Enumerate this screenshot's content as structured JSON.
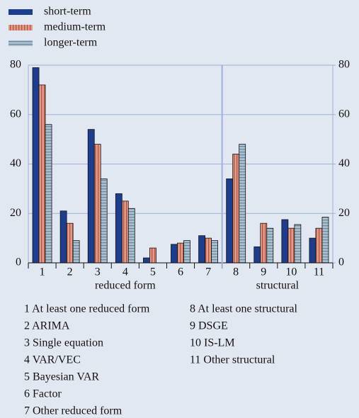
{
  "chart_data": {
    "type": "bar",
    "categories": [
      "1",
      "2",
      "3",
      "4",
      "5",
      "6",
      "7",
      "8",
      "9",
      "10",
      "11"
    ],
    "series": [
      {
        "name": "short-term",
        "color": "#1d3e8e",
        "values": [
          79,
          21,
          54,
          28,
          2,
          7.5,
          11,
          34,
          6.5,
          17.5,
          10
        ]
      },
      {
        "name": "medium-term",
        "color": "#e39a86",
        "values": [
          72,
          16,
          48,
          25,
          6,
          8,
          10,
          44,
          16,
          14,
          14
        ]
      },
      {
        "name": "longer-term",
        "color": "#a8c0d0",
        "values": [
          56,
          9,
          34,
          22,
          0,
          9,
          9,
          48,
          14,
          15.5,
          18.5
        ]
      }
    ],
    "ylim": [
      0,
      80
    ],
    "yticks": [
      0,
      20,
      40,
      60,
      80
    ],
    "y2lim": [
      0,
      80
    ],
    "y2ticks": [
      0,
      20,
      40,
      60,
      80
    ],
    "grid": true,
    "group_labels": [
      "reduced form",
      "structural"
    ],
    "notes": [
      [
        "1 At least one reduced form",
        "2 ARIMA",
        "3 Single equation",
        "4 VAR/VEC",
        "5 Bayesian VAR",
        "6 Factor",
        "7 Other reduced form"
      ],
      [
        "8 At least one structural",
        "9 DSGE",
        "10 IS-LM",
        "11 Other structural"
      ]
    ]
  }
}
